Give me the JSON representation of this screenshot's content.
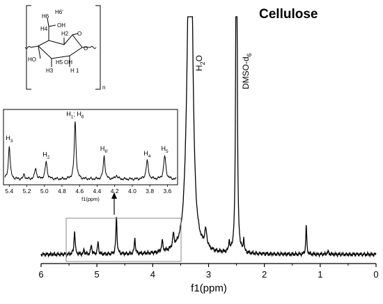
{
  "chart_data": [
    {
      "type": "line",
      "title": "Cellulose",
      "xlabel": "f1(ppm)",
      "ylabel": "",
      "xlim": [
        6,
        0
      ],
      "x_reversed": true,
      "x_ticks": [
        "6",
        "5",
        "4",
        "3",
        "2",
        "1",
        "0"
      ],
      "grid": false,
      "y_axis_visible": false,
      "annotations": [
        {
          "label_main": "H",
          "label_sub": "2",
          "label_tail": "O",
          "x": 3.34
        },
        {
          "label_main": "DMSO-d",
          "label_sub": "6",
          "label_tail": "",
          "x": 2.5
        }
      ],
      "series": [
        {
          "peaks": [
            {
              "x": 3.34,
              "height": 1.0,
              "width": 0.035
            },
            {
              "x": 3.31,
              "height": 0.85,
              "width": 0.04
            },
            {
              "x": 3.38,
              "height": 0.25,
              "width": 0.05
            },
            {
              "x": 2.505,
              "height": 1.0,
              "width": 0.012
            },
            {
              "x": 2.495,
              "height": 0.9,
              "width": 0.012
            },
            {
              "x": 5.4,
              "height": 0.1,
              "width": 0.012
            },
            {
              "x": 5.23,
              "height": 0.02,
              "width": 0.01
            },
            {
              "x": 5.1,
              "height": 0.04,
              "width": 0.012
            },
            {
              "x": 4.98,
              "height": 0.05,
              "width": 0.012
            },
            {
              "x": 4.65,
              "height": 0.155,
              "width": 0.012
            },
            {
              "x": 4.32,
              "height": 0.065,
              "width": 0.012
            },
            {
              "x": 3.83,
              "height": 0.045,
              "width": 0.015
            },
            {
              "x": 3.63,
              "height": 0.055,
              "width": 0.015
            },
            {
              "x": 3.05,
              "height": 0.07,
              "width": 0.025
            },
            {
              "x": 2.63,
              "height": 0.05,
              "width": 0.008
            },
            {
              "x": 2.37,
              "height": 0.06,
              "width": 0.008
            },
            {
              "x": 1.25,
              "height": 0.125,
              "width": 0.01
            },
            {
              "x": 0.86,
              "height": 0.01,
              "width": 0.02
            }
          ]
        }
      ]
    },
    {
      "type": "line",
      "title": "",
      "xlabel": "f1(ppm)",
      "xlim": [
        5.45,
        3.5
      ],
      "x_reversed": true,
      "x_ticks": [
        "5.4",
        "5.2",
        "5.0",
        "4.8",
        "4.6",
        "4.4",
        "4.2",
        "4.0",
        "3.8",
        "3.6"
      ],
      "peak_labels": [
        {
          "main": "H",
          "sub": "3",
          "x": 5.4
        },
        {
          "main": "H",
          "sub": "2",
          "x": 4.98
        },
        {
          "main": "H",
          "sub": "1",
          "tail": "; H",
          "sub2": "6",
          "x": 4.65
        },
        {
          "main": "H",
          "sub": "6'",
          "x": 4.32
        },
        {
          "main": "H",
          "sub": "4",
          "x": 3.83
        },
        {
          "main": "H",
          "sub": "5",
          "x": 3.63
        }
      ],
      "series": [
        {
          "peaks": [
            {
              "x": 5.4,
              "height": 0.55,
              "width": 0.012
            },
            {
              "x": 5.23,
              "height": 0.08,
              "width": 0.01
            },
            {
              "x": 5.1,
              "height": 0.18,
              "width": 0.012
            },
            {
              "x": 4.98,
              "height": 0.28,
              "width": 0.014
            },
            {
              "x": 4.65,
              "height": 0.95,
              "width": 0.012
            },
            {
              "x": 4.32,
              "height": 0.38,
              "width": 0.012
            },
            {
              "x": 4.18,
              "height": 0.06,
              "width": 0.015
            },
            {
              "x": 3.83,
              "height": 0.3,
              "width": 0.015
            },
            {
              "x": 3.63,
              "height": 0.38,
              "width": 0.015
            }
          ]
        }
      ]
    }
  ],
  "structure": {
    "labels": {
      "h6": "H6",
      "h6p": "H6'",
      "oh_top": "OH",
      "h4": "H4",
      "h2": "H2",
      "o_ring": "O",
      "o_link": "O",
      "ho_left": "HO",
      "h5": "H5",
      "oh_right": "OH",
      "h3": "H3",
      "h1": "H 1",
      "n": "n"
    }
  }
}
